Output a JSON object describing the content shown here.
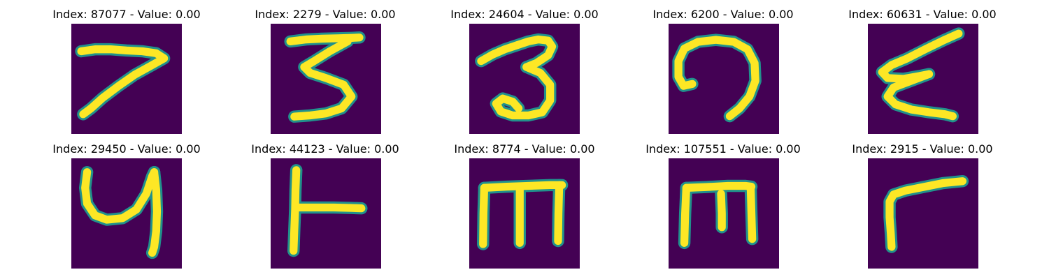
{
  "colors": {
    "background": "#440154",
    "stroke_mid": "#21918c",
    "stroke_core": "#fde725"
  },
  "panels": [
    {
      "title": "Index: 87077 - Value: 0.00",
      "strokes": [
        [
          [
            2.5,
            7.0
          ],
          [
            6.0,
            6.5
          ],
          [
            10.0,
            6.5
          ],
          [
            14.0,
            6.8
          ],
          [
            18.0,
            7.0
          ],
          [
            21.5,
            7.5
          ],
          [
            23.5,
            8.8
          ],
          [
            20.5,
            10.5
          ],
          [
            16.0,
            13.0
          ],
          [
            12.0,
            15.8
          ],
          [
            8.0,
            18.8
          ],
          [
            5.0,
            21.5
          ],
          [
            3.0,
            23.0
          ]
        ]
      ]
    },
    {
      "title": "Index: 2279 - Value: 0.00",
      "strokes": [
        [
          [
            5.0,
            4.5
          ],
          [
            9.0,
            4.0
          ],
          [
            13.0,
            3.8
          ],
          [
            17.0,
            3.7
          ],
          [
            20.5,
            3.6
          ],
          [
            22.5,
            3.5
          ]
        ],
        [
          [
            19.5,
            4.5
          ],
          [
            15.0,
            7.0
          ],
          [
            11.0,
            9.5
          ],
          [
            8.5,
            11.0
          ],
          [
            10.0,
            12.5
          ],
          [
            14.0,
            13.8
          ],
          [
            18.5,
            15.5
          ],
          [
            20.5,
            18.5
          ],
          [
            18.0,
            21.5
          ],
          [
            14.0,
            22.8
          ],
          [
            10.0,
            23.3
          ],
          [
            6.0,
            23.6
          ]
        ]
      ]
    },
    {
      "title": "Index: 24604 - Value: 0.00",
      "strokes": [
        [
          [
            3.0,
            9.5
          ],
          [
            6.0,
            7.8
          ],
          [
            9.0,
            6.5
          ],
          [
            12.0,
            5.5
          ],
          [
            15.0,
            4.5
          ],
          [
            17.5,
            4.0
          ],
          [
            20.0,
            4.3
          ],
          [
            21.0,
            5.8
          ],
          [
            20.0,
            8.0
          ],
          [
            17.0,
            10.0
          ],
          [
            14.5,
            11.0
          ]
        ],
        [
          [
            14.5,
            11.0
          ],
          [
            18.0,
            12.5
          ],
          [
            20.5,
            15.5
          ],
          [
            20.5,
            19.5
          ],
          [
            18.5,
            22.5
          ],
          [
            15.0,
            23.3
          ],
          [
            11.0,
            23.3
          ],
          [
            8.0,
            22.3
          ],
          [
            6.8,
            20.3
          ],
          [
            8.5,
            19.0
          ],
          [
            11.0,
            19.8
          ],
          [
            12.5,
            21.5
          ]
        ]
      ]
    },
    {
      "title": "Index: 6200 - Value: 0.00",
      "strokes": [
        [
          [
            6.0,
            15.3
          ],
          [
            3.8,
            15.8
          ],
          [
            2.5,
            13.5
          ],
          [
            2.5,
            9.5
          ],
          [
            4.0,
            6.3
          ],
          [
            7.5,
            4.6
          ],
          [
            12.0,
            4.1
          ],
          [
            16.5,
            4.6
          ],
          [
            20.0,
            6.5
          ],
          [
            21.8,
            10.0
          ],
          [
            22.0,
            14.5
          ],
          [
            20.5,
            18.5
          ],
          [
            18.0,
            21.5
          ],
          [
            15.5,
            23.5
          ]
        ]
      ]
    },
    {
      "title": "Index: 60631 - Value: 0.00",
      "strokes": [
        [
          [
            23.0,
            2.5
          ],
          [
            19.0,
            4.3
          ],
          [
            14.5,
            6.5
          ],
          [
            10.0,
            8.8
          ],
          [
            6.0,
            10.5
          ],
          [
            3.6,
            12.3
          ],
          [
            5.0,
            13.8
          ],
          [
            9.0,
            14.0
          ],
          [
            13.0,
            13.3
          ],
          [
            15.5,
            12.8
          ]
        ],
        [
          [
            15.5,
            12.8
          ],
          [
            11.0,
            14.5
          ],
          [
            6.5,
            16.2
          ],
          [
            5.0,
            18.5
          ],
          [
            7.0,
            20.5
          ],
          [
            11.0,
            21.8
          ],
          [
            15.5,
            22.5
          ],
          [
            19.5,
            23.0
          ],
          [
            21.5,
            23.5
          ]
        ]
      ]
    },
    {
      "title": "Index: 29450 - Value: 0.00",
      "strokes": [
        [
          [
            4.0,
            3.5
          ],
          [
            3.5,
            7.5
          ],
          [
            4.0,
            11.5
          ],
          [
            6.0,
            14.5
          ],
          [
            9.0,
            15.6
          ],
          [
            13.0,
            15.2
          ],
          [
            16.5,
            13.0
          ],
          [
            19.0,
            9.0
          ],
          [
            20.5,
            4.5
          ],
          [
            21.0,
            3.5
          ]
        ],
        [
          [
            21.0,
            3.5
          ],
          [
            21.5,
            8.0
          ],
          [
            21.7,
            13.5
          ],
          [
            21.5,
            18.5
          ],
          [
            21.0,
            22.5
          ],
          [
            20.5,
            24.0
          ]
        ]
      ]
    },
    {
      "title": "Index: 44123 - Value: 0.00",
      "strokes": [
        [
          [
            6.5,
            3.0
          ],
          [
            6.3,
            8.0
          ],
          [
            6.2,
            13.0
          ],
          [
            6.0,
            18.0
          ],
          [
            5.8,
            23.5
          ]
        ],
        [
          [
            6.5,
            12.5
          ],
          [
            11.0,
            12.5
          ],
          [
            16.0,
            12.5
          ],
          [
            20.5,
            12.6
          ],
          [
            23.0,
            12.7
          ]
        ]
      ]
    },
    {
      "title": "Index: 8774 - Value: 0.00",
      "strokes": [
        [
          [
            3.5,
            21.8
          ],
          [
            3.6,
            14.0
          ],
          [
            3.8,
            7.5
          ]
        ],
        [
          [
            3.8,
            7.5
          ],
          [
            9.5,
            7.2
          ],
          [
            15.0,
            7.0
          ],
          [
            20.5,
            6.8
          ],
          [
            23.5,
            6.8
          ]
        ],
        [
          [
            22.8,
            6.8
          ],
          [
            22.6,
            14.0
          ],
          [
            22.5,
            21.0
          ]
        ],
        [
          [
            12.8,
            7.2
          ],
          [
            12.8,
            14.0
          ],
          [
            12.8,
            21.5
          ]
        ]
      ]
    },
    {
      "title": "Index: 107551 - Value: 0.00",
      "strokes": [
        [
          [
            4.0,
            21.5
          ],
          [
            4.2,
            14.0
          ],
          [
            4.5,
            7.5
          ]
        ],
        [
          [
            4.5,
            7.5
          ],
          [
            9.5,
            7.3
          ],
          [
            15.0,
            7.0
          ],
          [
            19.5,
            7.0
          ],
          [
            21.0,
            7.2
          ]
        ],
        [
          [
            20.8,
            7.2
          ],
          [
            21.0,
            14.0
          ],
          [
            21.2,
            20.5
          ]
        ],
        [
          [
            13.3,
            9.0
          ],
          [
            13.5,
            14.0
          ],
          [
            13.5,
            17.5
          ]
        ]
      ]
    },
    {
      "title": "Index: 2915 - Value: 0.00",
      "strokes": [
        [
          [
            24.0,
            5.8
          ],
          [
            19.0,
            6.3
          ],
          [
            14.0,
            7.3
          ],
          [
            9.5,
            8.2
          ],
          [
            6.5,
            9.2
          ],
          [
            5.5,
            11.0
          ],
          [
            5.5,
            15.0
          ],
          [
            5.8,
            19.0
          ],
          [
            6.0,
            22.5
          ]
        ]
      ]
    }
  ]
}
